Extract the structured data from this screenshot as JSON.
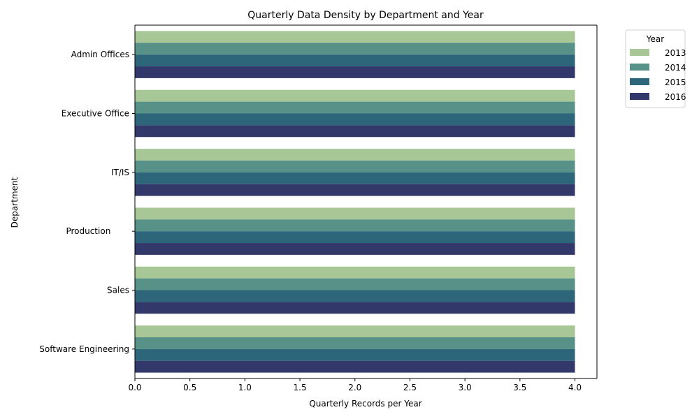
{
  "chart_data": {
    "type": "bar",
    "orientation": "horizontal",
    "title": "Quarterly Data Density by Department and Year",
    "xlabel": "Quarterly Records per Year",
    "ylabel": "Department",
    "xlim": [
      0,
      4.2
    ],
    "x_ticks": [
      "0.0",
      "0.5",
      "1.0",
      "1.5",
      "2.0",
      "2.5",
      "3.0",
      "3.5",
      "4.0"
    ],
    "x_tick_values": [
      0,
      0.5,
      1,
      1.5,
      2,
      2.5,
      3,
      3.5,
      4
    ],
    "categories": [
      "Admin Offices",
      "Executive Office",
      "IT/IS",
      "Production       ",
      "Sales",
      "Software Engineering"
    ],
    "legend": {
      "title": "Year",
      "placement": "outside-top-right"
    },
    "grid": false,
    "series": [
      {
        "name": "2013",
        "color": "#a7c797",
        "values": [
          4,
          4,
          4,
          4,
          4,
          4
        ]
      },
      {
        "name": "2014",
        "color": "#579187",
        "values": [
          4,
          4,
          4,
          4,
          4,
          4
        ]
      },
      {
        "name": "2015",
        "color": "#2d667b",
        "values": [
          4,
          4,
          4,
          4,
          4,
          4
        ]
      },
      {
        "name": "2016",
        "color": "#32386a",
        "values": [
          4,
          4,
          4,
          4,
          4,
          4
        ]
      }
    ]
  }
}
